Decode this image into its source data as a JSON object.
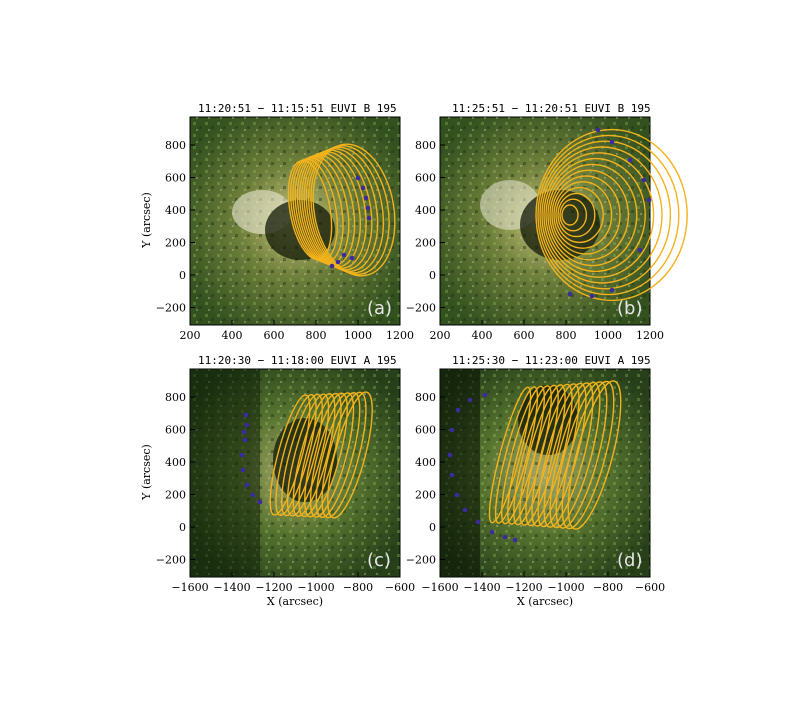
{
  "figure": {
    "x_axis_label": "X (arcsec)",
    "y_axis_label": "Y (arcsec)"
  },
  "panels": [
    {
      "id": "a",
      "title": "11:20:51 − 11:15:51   EUVI B 195",
      "label": "(a)",
      "xticks": [
        "200",
        "400",
        "600",
        "800",
        "1000",
        "1200"
      ],
      "yticks": [
        "800",
        "600",
        "400",
        "200",
        "0",
        "−200"
      ],
      "show_xlabel": false,
      "show_ylabel": true
    },
    {
      "id": "b",
      "title": "11:25:51 − 11:20:51   EUVI B 195",
      "label": "(b)",
      "xticks": [
        "200",
        "400",
        "600",
        "800",
        "1000",
        "1200"
      ],
      "yticks": [
        "800",
        "600",
        "400",
        "200",
        "0",
        "−200"
      ],
      "show_xlabel": false,
      "show_ylabel": false
    },
    {
      "id": "c",
      "title": "11:20:30 − 11:18:00   EUVI A 195",
      "label": "(c)",
      "xticks": [
        "−1600",
        "−1400",
        "−1200",
        "−1000",
        "−800",
        "−600"
      ],
      "yticks": [
        "800",
        "600",
        "400",
        "200",
        "0",
        "−200"
      ],
      "show_xlabel": true,
      "show_ylabel": true
    },
    {
      "id": "d",
      "title": "11:25:30 − 11:23:00   EUVI A 195",
      "label": "(d)",
      "xticks": [
        "−1600",
        "−1400",
        "−1200",
        "−1000",
        "−800",
        "−600"
      ],
      "yticks": [
        "800",
        "600",
        "400",
        "200",
        "0",
        "−200"
      ],
      "show_xlabel": true,
      "show_ylabel": false
    }
  ],
  "colors": {
    "ellipse": "#f2b21b",
    "marker": "#3b2aa0",
    "background": "#4a6a2c"
  }
}
